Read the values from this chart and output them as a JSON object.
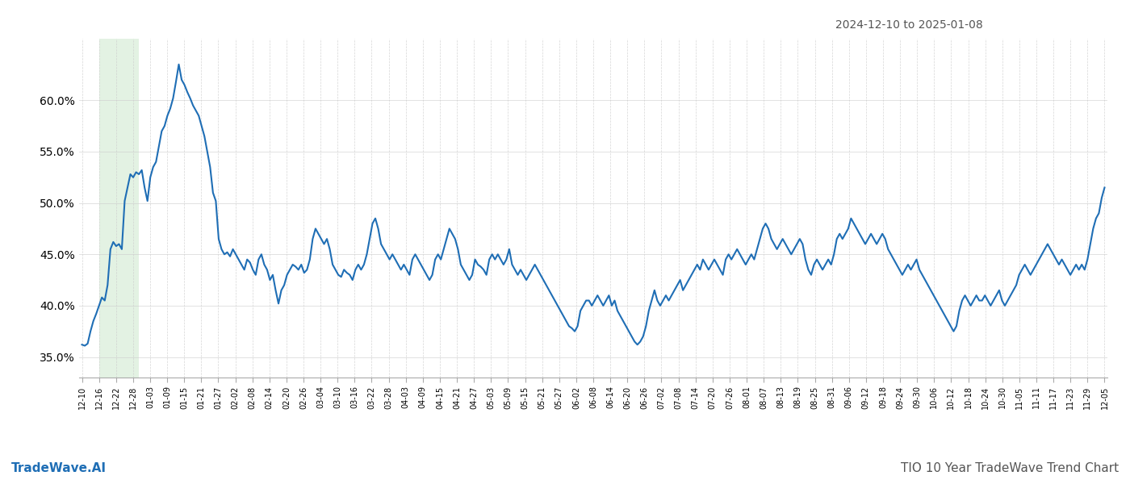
{
  "title_top_right": "2024-12-10 to 2025-01-08",
  "title_bottom_left": "TradeWave.AI",
  "title_bottom_right": "TIO 10 Year TradeWave Trend Chart",
  "line_color": "#1f6eb5",
  "line_width": 1.5,
  "shade_color": "#c8e6c9",
  "shade_alpha": 0.5,
  "shade_start": "2024-12-16",
  "shade_end": "2024-12-30",
  "background_color": "#ffffff",
  "grid_color": "#cccccc",
  "ylim": [
    33.0,
    66.0
  ],
  "yticks": [
    35.0,
    40.0,
    45.0,
    50.0,
    55.0,
    60.0
  ],
  "xtick_labels": [
    "12-10",
    "12-16",
    "12-22",
    "12-28",
    "01-03",
    "01-09",
    "01-15",
    "01-21",
    "01-27",
    "02-02",
    "02-08",
    "02-14",
    "02-20",
    "02-26",
    "03-04",
    "03-10",
    "03-16",
    "03-22",
    "03-28",
    "04-03",
    "04-09",
    "04-15",
    "04-21",
    "04-27",
    "05-03",
    "05-09",
    "05-15",
    "05-21",
    "05-27",
    "06-02",
    "06-08",
    "06-14",
    "06-20",
    "06-26",
    "07-02",
    "07-08",
    "07-14",
    "07-20",
    "07-26",
    "08-01",
    "08-07",
    "08-13",
    "08-19",
    "08-25",
    "08-31",
    "09-06",
    "09-12",
    "09-18",
    "09-24",
    "09-30",
    "10-06",
    "10-12",
    "10-18",
    "10-24",
    "10-30",
    "11-05",
    "11-11",
    "11-17",
    "11-23",
    "11-29",
    "12-05"
  ],
  "y_values": [
    36.2,
    36.1,
    36.3,
    37.5,
    38.5,
    39.2,
    40.0,
    40.8,
    40.5,
    42.0,
    45.5,
    46.2,
    45.8,
    46.0,
    45.5,
    50.2,
    51.5,
    52.8,
    52.5,
    53.0,
    52.8,
    53.2,
    51.5,
    50.2,
    52.5,
    53.5,
    54.0,
    55.5,
    57.0,
    57.5,
    58.5,
    59.2,
    60.2,
    61.8,
    63.5,
    62.0,
    61.5,
    60.8,
    60.2,
    59.5,
    59.0,
    58.5,
    57.5,
    56.5,
    55.0,
    53.5,
    51.0,
    50.2,
    46.5,
    45.5,
    45.0,
    45.2,
    44.8,
    45.5,
    45.0,
    44.5,
    44.0,
    43.5,
    44.5,
    44.2,
    43.5,
    43.0,
    44.5,
    45.0,
    44.0,
    43.5,
    42.5,
    43.0,
    41.5,
    40.2,
    41.5,
    42.0,
    43.0,
    43.5,
    44.0,
    43.8,
    43.5,
    44.0,
    43.2,
    43.5,
    44.5,
    46.5,
    47.5,
    47.0,
    46.5,
    46.0,
    46.5,
    45.5,
    44.0,
    43.5,
    43.0,
    42.8,
    43.5,
    43.2,
    43.0,
    42.5,
    43.5,
    44.0,
    43.5,
    44.0,
    45.0,
    46.5,
    48.0,
    48.5,
    47.5,
    46.0,
    45.5,
    45.0,
    44.5,
    45.0,
    44.5,
    44.0,
    43.5,
    44.0,
    43.5,
    43.0,
    44.5,
    45.0,
    44.5,
    44.0,
    43.5,
    43.0,
    42.5,
    43.0,
    44.5,
    45.0,
    44.5,
    45.5,
    46.5,
    47.5,
    47.0,
    46.5,
    45.5,
    44.0,
    43.5,
    43.0,
    42.5,
    43.0,
    44.5,
    44.0,
    43.8,
    43.5,
    43.0,
    44.5,
    45.0,
    44.5,
    45.0,
    44.5,
    44.0,
    44.5,
    45.5,
    44.0,
    43.5,
    43.0,
    43.5,
    43.0,
    42.5,
    43.0,
    43.5,
    44.0,
    43.5,
    43.0,
    42.5,
    42.0,
    41.5,
    41.0,
    40.5,
    40.0,
    39.5,
    39.0,
    38.5,
    38.0,
    37.8,
    37.5,
    38.0,
    39.5,
    40.0,
    40.5,
    40.5,
    40.0,
    40.5,
    41.0,
    40.5,
    40.0,
    40.5,
    41.0,
    40.0,
    40.5,
    39.5,
    39.0,
    38.5,
    38.0,
    37.5,
    37.0,
    36.5,
    36.2,
    36.5,
    37.0,
    38.0,
    39.5,
    40.5,
    41.5,
    40.5,
    40.0,
    40.5,
    41.0,
    40.5,
    41.0,
    41.5,
    42.0,
    42.5,
    41.5,
    42.0,
    42.5,
    43.0,
    43.5,
    44.0,
    43.5,
    44.5,
    44.0,
    43.5,
    44.0,
    44.5,
    44.0,
    43.5,
    43.0,
    44.5,
    45.0,
    44.5,
    45.0,
    45.5,
    45.0,
    44.5,
    44.0,
    44.5,
    45.0,
    44.5,
    45.5,
    46.5,
    47.5,
    48.0,
    47.5,
    46.5,
    46.0,
    45.5,
    46.0,
    46.5,
    46.0,
    45.5,
    45.0,
    45.5,
    46.0,
    46.5,
    46.0,
    44.5,
    43.5,
    43.0,
    44.0,
    44.5,
    44.0,
    43.5,
    44.0,
    44.5,
    44.0,
    45.0,
    46.5,
    47.0,
    46.5,
    47.0,
    47.5,
    48.5,
    48.0,
    47.5,
    47.0,
    46.5,
    46.0,
    46.5,
    47.0,
    46.5,
    46.0,
    46.5,
    47.0,
    46.5,
    45.5,
    45.0,
    44.5,
    44.0,
    43.5,
    43.0,
    43.5,
    44.0,
    43.5,
    44.0,
    44.5,
    43.5,
    43.0,
    42.5,
    42.0,
    41.5,
    41.0,
    40.5,
    40.0,
    39.5,
    39.0,
    38.5,
    38.0,
    37.5,
    38.0,
    39.5,
    40.5,
    41.0,
    40.5,
    40.0,
    40.5,
    41.0,
    40.5,
    40.5,
    41.0,
    40.5,
    40.0,
    40.5,
    41.0,
    41.5,
    40.5,
    40.0,
    40.5,
    41.0,
    41.5,
    42.0,
    43.0,
    43.5,
    44.0,
    43.5,
    43.0,
    43.5,
    44.0,
    44.5,
    45.0,
    45.5,
    46.0,
    45.5,
    45.0,
    44.5,
    44.0,
    44.5,
    44.0,
    43.5,
    43.0,
    43.5,
    44.0,
    43.5,
    44.0,
    43.5,
    44.5,
    46.0,
    47.5,
    48.5,
    49.0,
    50.5,
    51.5
  ]
}
